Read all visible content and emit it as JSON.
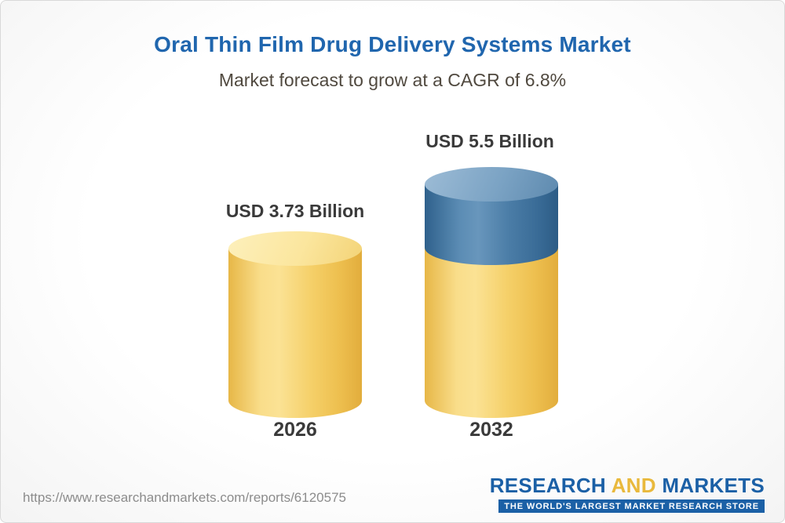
{
  "chart_data": {
    "type": "bar",
    "title": "Oral Thin Film Drug Delivery Systems Market",
    "subtitle": "Market forecast to grow at a CAGR of 6.8%",
    "cagr_percent": 6.8,
    "unit": "USD Billion",
    "categories": [
      "2026",
      "2032"
    ],
    "values": [
      3.73,
      5.5
    ],
    "grid": false,
    "legend_position": "none",
    "bars": [
      {
        "year": "2026",
        "label": "USD 3.73 Billion",
        "value": 3.73,
        "color": "#f5d069"
      },
      {
        "year": "2032",
        "label": "USD 5.5 Billion",
        "value": 5.5,
        "segment_colors": [
          "#f5d069",
          "#4a7ca6"
        ]
      }
    ]
  },
  "footer": {
    "url": "https://www.researchandmarkets.com/reports/6120575",
    "logo": {
      "part1": "RESEARCH",
      "part2": "AND",
      "part3": "MARKETS",
      "tagline": "THE WORLD'S LARGEST MARKET RESEARCH STORE"
    }
  },
  "colors": {
    "title_blue": "#2066ae",
    "subtitle_text": "#50493f",
    "label_text": "#3a3a3a",
    "bar_yellow": "#f5d069",
    "bar_yellow_top": "#fbe69e",
    "bar_blue": "#4a7ca6",
    "bar_blue_top": "#7ba3c4",
    "logo_blue": "#1b60a6",
    "logo_gold": "#e9b93c",
    "url_gray": "#8c8c8c"
  }
}
